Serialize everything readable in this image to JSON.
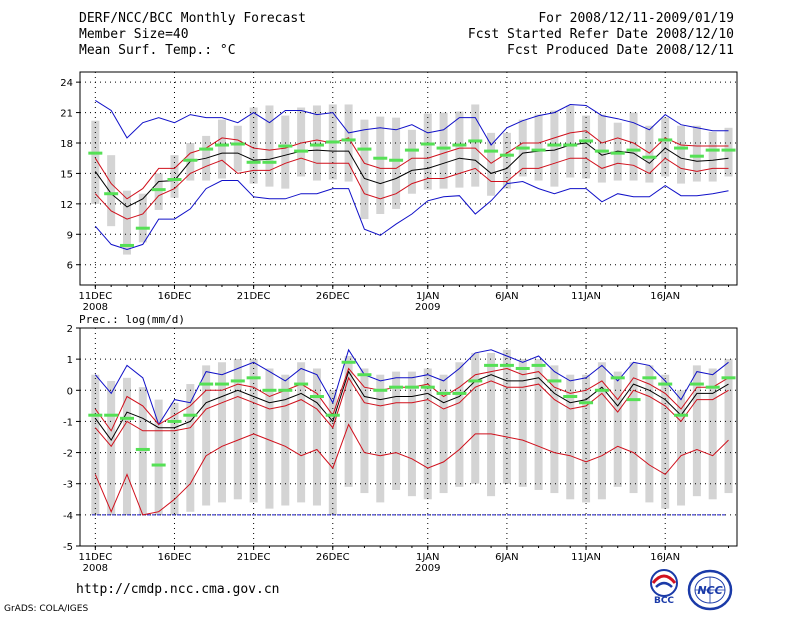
{
  "header": {
    "title": "DERF/NCC/BCC Monthly Forecast",
    "member_size": "Member Size=40",
    "variable": "Mean Surf. Temp.: °C",
    "period": "For 2008/12/11-2009/01/19",
    "start_date": "Fcst Started Refer Date 2008/12/10",
    "produced_date": "Fcst Produced Date 2008/12/11"
  },
  "footer": {
    "url": "http://cmdp.ncc.cma.gov.cn",
    "credit": "GrADS: COLA/IGES",
    "logo_bcc": "BCC",
    "logo_ncc": "NCC"
  },
  "colors": {
    "mean_line": "#000000",
    "spread_line": "#d0101c",
    "extreme_line": "#1010c8",
    "box": "#d4d4d4",
    "ref_marker": "#55e055",
    "baseline": "#1010c8"
  },
  "chart_data": [
    {
      "type": "line",
      "title": "Mean Surf. Temp.: °C",
      "xlabel": "",
      "ylabel": "°C",
      "ylim": [
        4,
        25
      ],
      "yticks": [
        6,
        9,
        12,
        15,
        18,
        21,
        24
      ],
      "xlim": [
        0,
        41
      ],
      "x_ticks": [
        {
          "x": 1,
          "label": "11DEC",
          "sublabel": "2008"
        },
        {
          "x": 6,
          "label": "16DEC",
          "sublabel": ""
        },
        {
          "x": 11,
          "label": "21DEC",
          "sublabel": ""
        },
        {
          "x": 16,
          "label": "26DEC",
          "sublabel": ""
        },
        {
          "x": 22,
          "label": "1JAN",
          "sublabel": "2009"
        },
        {
          "x": 27,
          "label": "6JAN",
          "sublabel": ""
        },
        {
          "x": 32,
          "label": "11JAN",
          "sublabel": ""
        },
        {
          "x": 37,
          "label": "16JAN",
          "sublabel": ""
        }
      ],
      "grid": true,
      "series": [
        {
          "name": "max",
          "role": "extreme",
          "values": [
            22.2,
            21.2,
            18.5,
            20.0,
            20.5,
            20.0,
            20.8,
            20.5,
            20.5,
            20.0,
            21.0,
            20.0,
            21.2,
            21.2,
            20.8,
            21.0,
            19.0,
            19.3,
            19.5,
            19.3,
            19.8,
            19.0,
            19.3,
            20.5,
            20.5,
            17.8,
            19.5,
            20.2,
            20.7,
            21.0,
            21.8,
            21.7,
            20.7,
            20.4,
            20.0,
            19.3,
            20.8,
            19.8,
            19.5,
            19.2,
            19.2
          ]
        },
        {
          "name": "upper",
          "role": "spread",
          "values": [
            16.5,
            14.0,
            12.5,
            13.5,
            15.5,
            15.5,
            17.0,
            17.5,
            18.5,
            18.3,
            17.5,
            17.3,
            17.5,
            18.0,
            18.3,
            18.0,
            18.5,
            16.0,
            15.5,
            15.5,
            16.5,
            16.5,
            17.0,
            17.5,
            17.5,
            16.0,
            17.0,
            18.0,
            18.0,
            18.5,
            19.0,
            19.2,
            18.0,
            18.5,
            18.0,
            17.0,
            18.5,
            17.8,
            17.7,
            17.7,
            17.7
          ]
        },
        {
          "name": "mean",
          "role": "mean",
          "values": [
            15.2,
            13.0,
            11.7,
            12.5,
            14.2,
            14.3,
            16.2,
            16.5,
            17.0,
            17.0,
            16.3,
            16.4,
            16.8,
            17.2,
            17.3,
            17.2,
            17.2,
            14.5,
            14.0,
            14.5,
            15.3,
            15.5,
            16.0,
            16.5,
            16.3,
            15.0,
            15.5,
            17.0,
            17.2,
            17.3,
            17.8,
            18.0,
            16.8,
            17.2,
            17.0,
            16.0,
            17.5,
            16.5,
            16.2,
            16.3,
            16.5
          ]
        },
        {
          "name": "lower",
          "role": "spread",
          "values": [
            13.0,
            11.3,
            10.5,
            11.0,
            12.8,
            13.5,
            15.0,
            15.7,
            16.3,
            15.0,
            15.3,
            15.3,
            16.0,
            16.5,
            16.0,
            16.0,
            16.0,
            13.0,
            12.5,
            13.0,
            14.0,
            14.5,
            14.5,
            15.0,
            15.5,
            14.2,
            14.2,
            15.5,
            15.5,
            16.0,
            16.5,
            16.5,
            15.5,
            16.0,
            15.8,
            15.0,
            16.5,
            15.5,
            15.2,
            15.5,
            15.5
          ]
        },
        {
          "name": "min",
          "role": "extreme",
          "values": [
            9.8,
            8.0,
            7.5,
            8.0,
            10.5,
            10.5,
            11.5,
            13.5,
            14.3,
            14.3,
            12.7,
            12.5,
            12.5,
            13.0,
            13.0,
            13.5,
            13.5,
            9.5,
            8.9,
            10.0,
            11.0,
            12.3,
            12.7,
            12.8,
            11.0,
            12.3,
            14.0,
            14.2,
            13.5,
            13.0,
            13.5,
            13.5,
            12.2,
            13.0,
            12.7,
            12.7,
            13.8,
            12.8,
            12.8,
            13.0,
            13.3
          ]
        },
        {
          "name": "reference",
          "role": "marker",
          "values": [
            17.0,
            13.0,
            7.9,
            9.6,
            13.4,
            14.4,
            16.3,
            17.4,
            17.8,
            17.9,
            16.1,
            16.1,
            17.7,
            17.2,
            17.8,
            18.1,
            18.3,
            17.4,
            16.5,
            16.3,
            17.3,
            17.9,
            17.5,
            17.8,
            18.2,
            17.2,
            16.8,
            17.5,
            17.3,
            17.8,
            17.8,
            18.2,
            17.2,
            17.0,
            17.3,
            16.6,
            18.3,
            17.5,
            16.7,
            17.3,
            17.3
          ]
        },
        {
          "name": "box_top",
          "role": "box",
          "values": [
            20.2,
            16.8,
            13.3,
            13.0,
            15.0,
            16.8,
            18.0,
            18.7,
            20.3,
            19.7,
            21.5,
            21.7,
            20.7,
            21.5,
            21.7,
            21.8,
            21.8,
            20.3,
            20.6,
            20.5,
            19.3,
            20.9,
            21.0,
            21.1,
            21.8,
            19.0,
            19.0,
            20.3,
            20.8,
            21.2,
            21.7,
            20.7,
            20.8,
            20.0,
            21.0,
            19.7,
            20.5,
            19.7,
            19.7,
            19.1,
            19.5
          ]
        },
        {
          "name": "box_bottom",
          "role": "box",
          "values": [
            12.0,
            9.8,
            7.0,
            8.2,
            11.4,
            12.6,
            14.3,
            14.3,
            14.5,
            15.2,
            14.0,
            13.7,
            13.5,
            14.7,
            14.3,
            14.4,
            14.2,
            10.5,
            11.0,
            11.5,
            13.0,
            13.4,
            13.5,
            13.6,
            13.7,
            12.8,
            13.5,
            14.7,
            14.3,
            13.7,
            14.6,
            14.5,
            14.1,
            14.3,
            14.3,
            14.1,
            14.7,
            14.0,
            14.2,
            14.2,
            14.7
          ]
        }
      ]
    },
    {
      "type": "line",
      "title": "Prec.: log(mm/d)",
      "xlabel": "",
      "ylabel": "log(mm/d)",
      "ylim": [
        -5,
        2
      ],
      "yticks": [
        -5,
        -4,
        -3,
        -2,
        -1,
        0,
        1,
        2
      ],
      "xlim": [
        0,
        41
      ],
      "x_ticks": [
        {
          "x": 1,
          "label": "11DEC",
          "sublabel": "2008"
        },
        {
          "x": 6,
          "label": "16DEC",
          "sublabel": ""
        },
        {
          "x": 11,
          "label": "21DEC",
          "sublabel": ""
        },
        {
          "x": 16,
          "label": "26DEC",
          "sublabel": ""
        },
        {
          "x": 22,
          "label": "1JAN",
          "sublabel": "2009"
        },
        {
          "x": 27,
          "label": "6JAN",
          "sublabel": ""
        },
        {
          "x": 32,
          "label": "11JAN",
          "sublabel": ""
        },
        {
          "x": 37,
          "label": "16JAN",
          "sublabel": ""
        }
      ],
      "grid": true,
      "baseline": -4,
      "series": [
        {
          "name": "max",
          "role": "extreme",
          "values": [
            0.5,
            -0.1,
            0.8,
            0.4,
            -1.1,
            -0.3,
            -0.4,
            0.6,
            0.5,
            0.7,
            0.9,
            0.6,
            0.3,
            0.7,
            0.5,
            -0.4,
            1.3,
            0.5,
            0.3,
            0.4,
            0.4,
            0.5,
            0.3,
            0.7,
            1.2,
            1.3,
            1.1,
            0.9,
            1.1,
            0.6,
            0.3,
            0.4,
            0.8,
            0.3,
            0.9,
            0.8,
            0.3,
            -0.3,
            0.6,
            0.5,
            0.9
          ]
        },
        {
          "name": "upper",
          "role": "spread",
          "values": [
            -0.6,
            -1.3,
            -0.2,
            -0.5,
            -1.1,
            -0.8,
            -0.5,
            0.0,
            0.0,
            0.2,
            0.1,
            -0.2,
            0.0,
            0.2,
            -0.1,
            -0.8,
            0.7,
            0.1,
            0.0,
            0.1,
            0.1,
            0.2,
            -0.2,
            0.1,
            0.5,
            0.6,
            0.7,
            0.5,
            0.6,
            0.1,
            -0.1,
            0.0,
            0.3,
            -0.3,
            0.4,
            0.2,
            -0.1,
            -0.6,
            0.1,
            0.1,
            0.4
          ]
        },
        {
          "name": "mean",
          "role": "mean",
          "values": [
            -0.9,
            -1.6,
            -0.7,
            -0.9,
            -1.2,
            -1.2,
            -1.0,
            -0.4,
            -0.2,
            0.0,
            -0.2,
            -0.4,
            -0.3,
            -0.1,
            -0.4,
            -1.0,
            0.6,
            -0.2,
            -0.3,
            -0.2,
            -0.2,
            -0.1,
            -0.4,
            -0.2,
            0.3,
            0.5,
            0.3,
            0.3,
            0.4,
            -0.1,
            -0.4,
            -0.3,
            0.1,
            -0.5,
            0.2,
            0.0,
            -0.3,
            -0.8,
            -0.1,
            -0.1,
            0.2
          ]
        },
        {
          "name": "lower",
          "role": "spread",
          "values": [
            -1.2,
            -1.8,
            -1.0,
            -1.3,
            -1.3,
            -1.3,
            -1.2,
            -0.6,
            -0.4,
            -0.2,
            -0.4,
            -0.6,
            -0.5,
            -0.3,
            -0.6,
            -1.2,
            0.4,
            -0.4,
            -0.5,
            -0.4,
            -0.4,
            -0.3,
            -0.6,
            -0.4,
            0.1,
            0.3,
            0.1,
            0.1,
            0.2,
            -0.3,
            -0.6,
            -0.5,
            -0.1,
            -0.7,
            0.0,
            -0.2,
            -0.5,
            -1.0,
            -0.3,
            -0.3,
            0.0
          ]
        },
        {
          "name": "min",
          "role": "spread",
          "values": [
            -2.7,
            -3.9,
            -2.7,
            -4.0,
            -3.9,
            -3.5,
            -3.0,
            -2.1,
            -1.8,
            -1.6,
            -1.4,
            -1.6,
            -1.8,
            -2.1,
            -1.9,
            -2.5,
            -1.1,
            -2.0,
            -2.1,
            -2.0,
            -2.2,
            -2.5,
            -2.3,
            -1.9,
            -1.4,
            -1.4,
            -1.5,
            -1.6,
            -1.8,
            -2.0,
            -2.1,
            -2.3,
            -2.1,
            -1.8,
            -2.0,
            -2.4,
            -2.7,
            -2.1,
            -1.9,
            -2.1,
            -1.6
          ]
        },
        {
          "name": "reference",
          "role": "marker",
          "values": [
            -0.8,
            -0.8,
            -0.9,
            -1.9,
            -2.4,
            -1.0,
            -0.8,
            0.2,
            0.2,
            0.3,
            0.4,
            0.0,
            0.0,
            0.2,
            -0.2,
            -0.8,
            0.9,
            0.5,
            0.0,
            0.1,
            0.1,
            0.1,
            -0.1,
            -0.1,
            0.3,
            0.8,
            0.8,
            0.7,
            0.8,
            0.3,
            -0.2,
            -0.4,
            0.0,
            0.4,
            -0.3,
            0.4,
            0.2,
            -0.8,
            0.2,
            0.1,
            0.4
          ]
        },
        {
          "name": "box_top",
          "role": "box",
          "values": [
            0.5,
            0.3,
            0.4,
            0.1,
            -0.3,
            -0.4,
            0.2,
            0.8,
            0.9,
            1.0,
            1.0,
            0.7,
            0.5,
            0.9,
            0.7,
            0.0,
            1.1,
            0.7,
            0.5,
            0.6,
            0.6,
            0.7,
            0.5,
            0.9,
            1.2,
            1.2,
            1.3,
            1.0,
            1.0,
            0.8,
            0.5,
            0.5,
            0.9,
            0.6,
            0.9,
            0.8,
            0.5,
            0.0,
            0.8,
            0.7,
            1.0
          ]
        },
        {
          "name": "box_bottom",
          "role": "box",
          "values": [
            -4.0,
            -4.0,
            -4.0,
            -4.0,
            -4.0,
            -4.0,
            -3.9,
            -3.7,
            -3.6,
            -3.5,
            -3.6,
            -3.8,
            -3.7,
            -3.6,
            -3.7,
            -4.0,
            -3.1,
            -3.3,
            -3.6,
            -3.2,
            -3.4,
            -3.5,
            -3.3,
            -3.1,
            -3.0,
            -3.4,
            -3.0,
            -3.1,
            -3.2,
            -3.3,
            -3.5,
            -3.6,
            -3.5,
            -3.1,
            -3.3,
            -3.6,
            -3.8,
            -3.7,
            -3.4,
            -3.5,
            -3.3
          ]
        }
      ]
    }
  ]
}
